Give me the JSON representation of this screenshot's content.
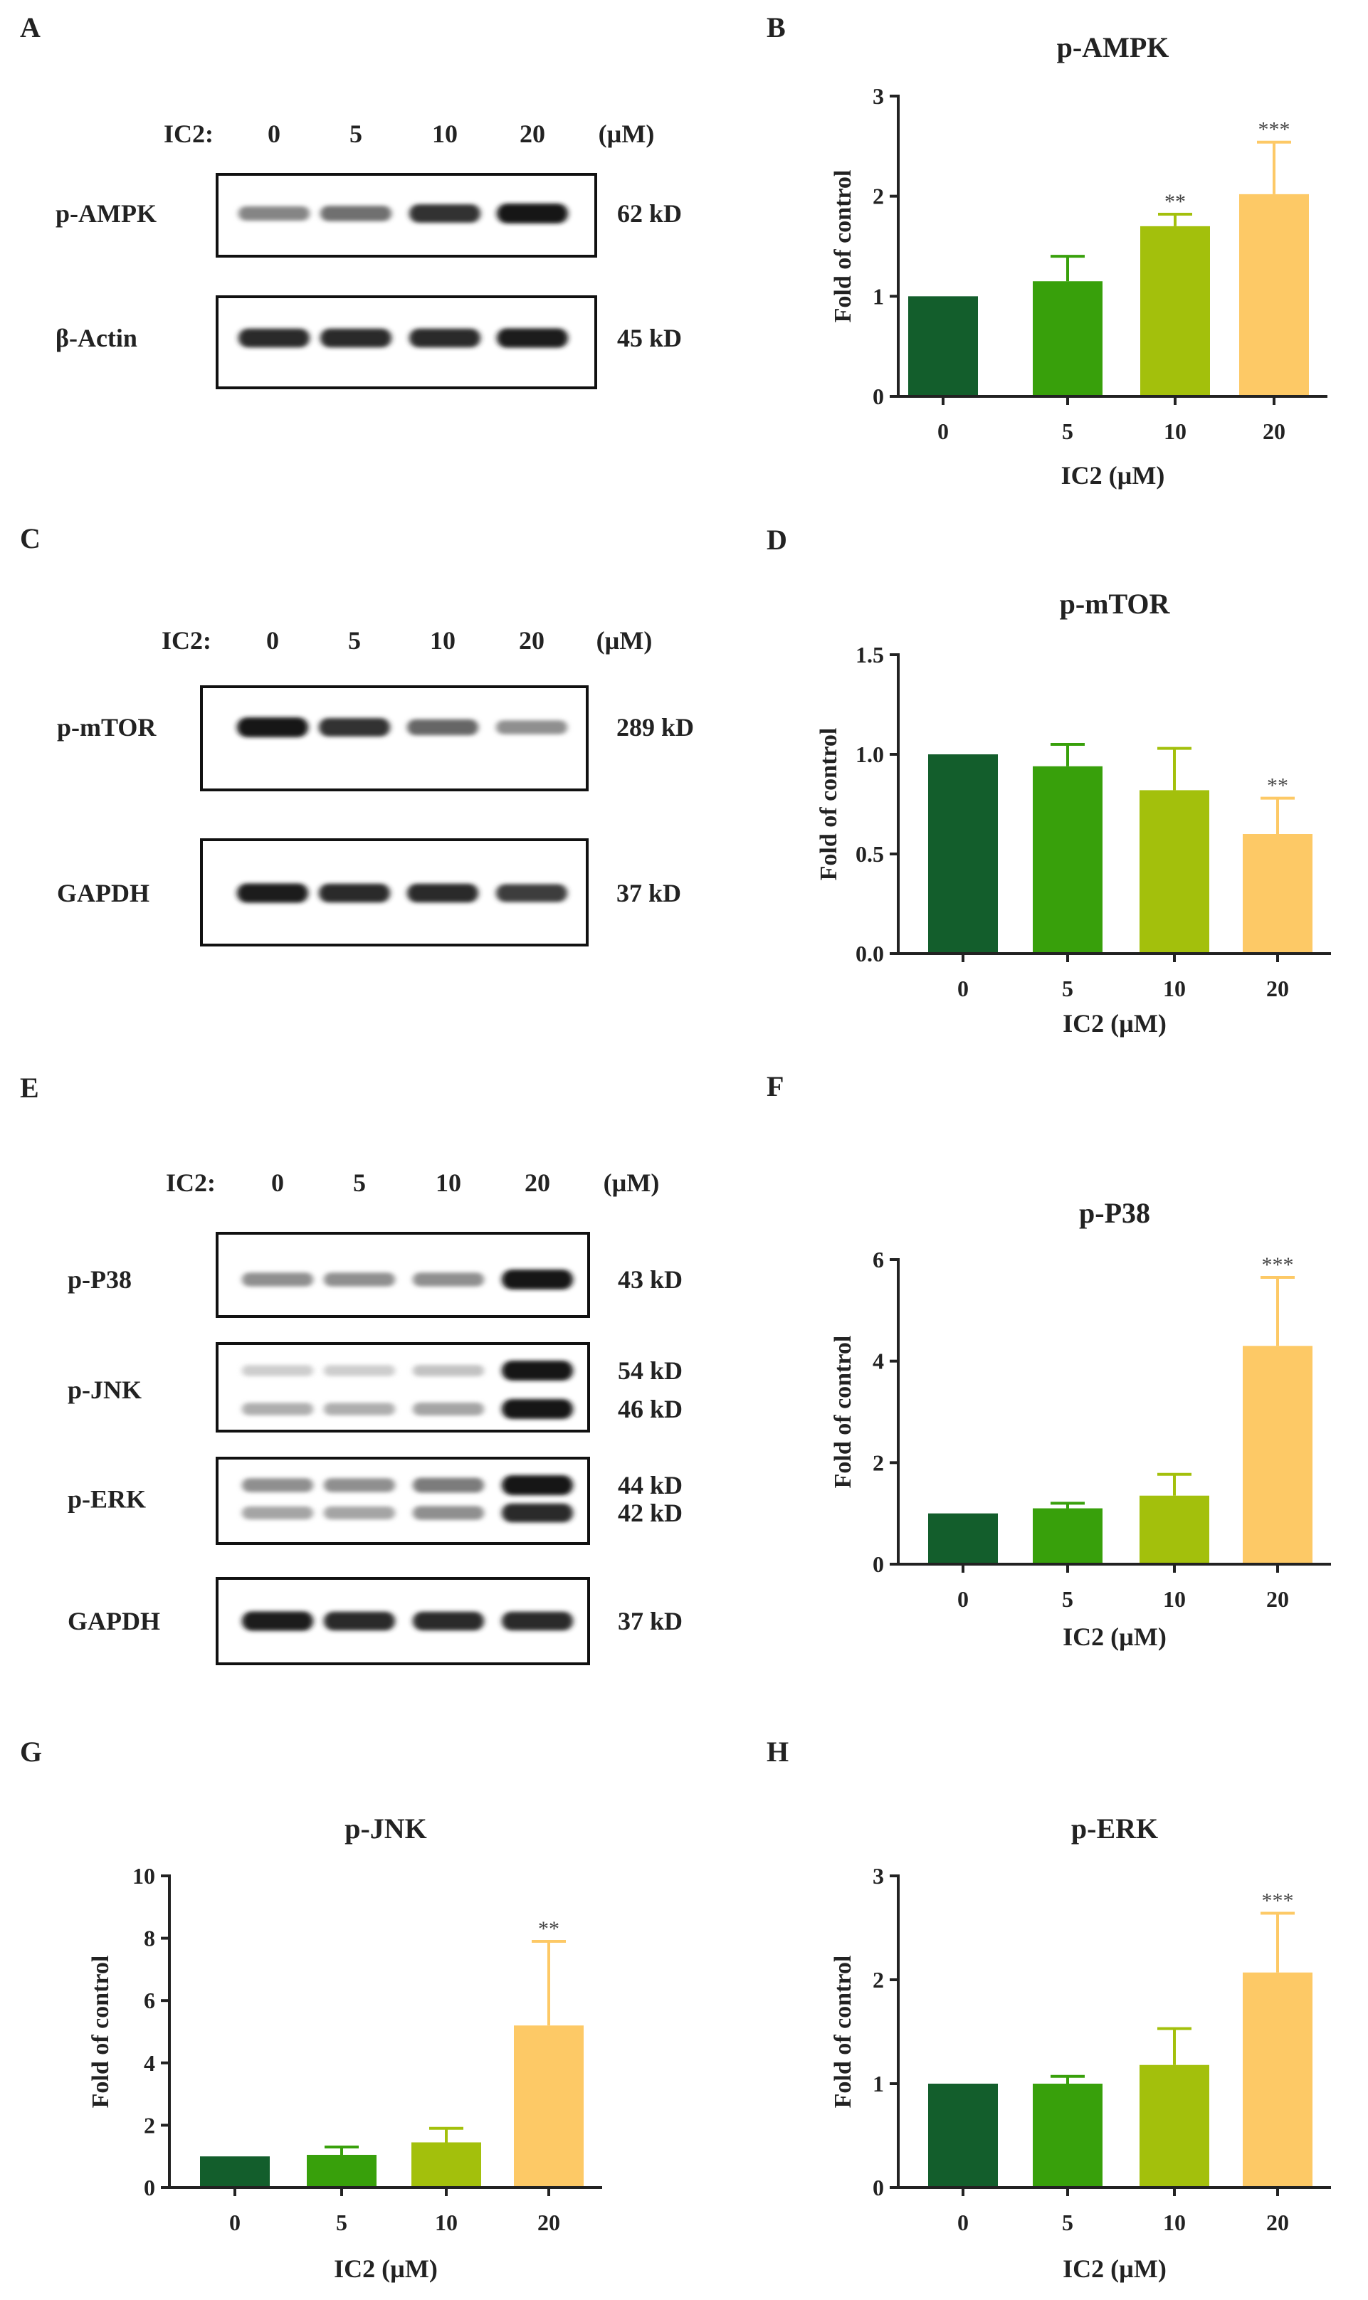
{
  "colors": {
    "c0": "#135e2c",
    "c5": "#38a00b",
    "c10": "#a3c00c",
    "c20": "#fdc966",
    "ink": "#222222"
  },
  "blots": [
    {
      "panel": "A",
      "doses": [
        "0",
        "5",
        "10",
        "20"
      ],
      "dose_prefix": "IC2:",
      "unit": "(µM)",
      "rows": [
        {
          "label": "p-AMPK",
          "kd": [
            "62 kD"
          ],
          "bands": [
            [
              0.45,
              0.55,
              0.85,
              1.0
            ]
          ]
        },
        {
          "label": "β-Actin",
          "kd": [
            "45 kD"
          ],
          "bands": [
            [
              0.9,
              0.9,
              0.9,
              0.95
            ]
          ]
        }
      ]
    },
    {
      "panel": "C",
      "doses": [
        "0",
        "5",
        "10",
        "20"
      ],
      "dose_prefix": "IC2:",
      "unit": "(µM)",
      "rows": [
        {
          "label": "p-mTOR",
          "kd": [
            "289 kD"
          ],
          "bands": [
            [
              1.0,
              0.85,
              0.6,
              0.4
            ]
          ]
        },
        {
          "label": "GAPDH",
          "kd": [
            "37 kD"
          ],
          "bands": [
            [
              0.95,
              0.9,
              0.9,
              0.8
            ]
          ]
        }
      ]
    },
    {
      "panel": "E",
      "doses": [
        "0",
        "5",
        "10",
        "20"
      ],
      "dose_prefix": "IC2:",
      "unit": "(µM)",
      "rows": [
        {
          "label": "p-P38",
          "kd": [
            "43 kD"
          ],
          "bands": [
            [
              0.4,
              0.4,
              0.4,
              1.0
            ]
          ]
        },
        {
          "label": "p-JNK",
          "kd": [
            "54 kD",
            "46 kD"
          ],
          "bands": [
            [
              0.1,
              0.1,
              0.15,
              1.0
            ],
            [
              0.25,
              0.25,
              0.3,
              1.0
            ]
          ]
        },
        {
          "label": "p-ERK",
          "kd": [
            "44 kD",
            "42 kD"
          ],
          "bands": [
            [
              0.4,
              0.4,
              0.5,
              1.0
            ],
            [
              0.3,
              0.3,
              0.4,
              0.9
            ]
          ]
        },
        {
          "label": "GAPDH",
          "kd": [
            "37 kD"
          ],
          "bands": [
            [
              0.95,
              0.9,
              0.9,
              0.9
            ]
          ]
        }
      ]
    }
  ],
  "chart_data": [
    {
      "panel": "B",
      "type": "bar",
      "title": "p-AMPK",
      "xlabel": "IC2 (µM)",
      "ylabel": "Fold of control",
      "categories": [
        "0",
        "5",
        "10",
        "20"
      ],
      "values": [
        1.0,
        1.15,
        1.7,
        2.02
      ],
      "errors": [
        0,
        0.25,
        0.12,
        0.52
      ],
      "significance": [
        "",
        "",
        "**",
        "***"
      ],
      "ylim": [
        0,
        3
      ],
      "yticks": [
        "0",
        "1",
        "2",
        "3"
      ],
      "grid": false
    },
    {
      "panel": "D",
      "type": "bar",
      "title": "p-mTOR",
      "xlabel": "IC2 (µM)",
      "ylabel": "Fold of control",
      "categories": [
        "0",
        "5",
        "10",
        "20"
      ],
      "values": [
        1.0,
        0.94,
        0.82,
        0.6
      ],
      "errors": [
        0,
        0.11,
        0.21,
        0.18
      ],
      "significance": [
        "",
        "",
        "",
        "**"
      ],
      "ylim": [
        0,
        1.5
      ],
      "yticks": [
        "0.0",
        "0.5",
        "1.0",
        "1.5"
      ],
      "grid": false
    },
    {
      "panel": "F",
      "type": "bar",
      "title": "p-P38",
      "xlabel": "IC2 (µM)",
      "ylabel": "Fold of control",
      "categories": [
        "0",
        "5",
        "10",
        "20"
      ],
      "values": [
        1.0,
        1.1,
        1.35,
        4.3
      ],
      "errors": [
        0,
        0.1,
        0.42,
        1.35
      ],
      "significance": [
        "",
        "",
        "",
        "***"
      ],
      "ylim": [
        0,
        6
      ],
      "yticks": [
        "0",
        "2",
        "4",
        "6"
      ],
      "grid": false
    },
    {
      "panel": "G",
      "type": "bar",
      "title": "p-JNK",
      "xlabel": "IC2 (µM)",
      "ylabel": "Fold of control",
      "categories": [
        "0",
        "5",
        "10",
        "20"
      ],
      "values": [
        1.0,
        1.05,
        1.45,
        5.2
      ],
      "errors": [
        0,
        0.25,
        0.45,
        2.7
      ],
      "significance": [
        "",
        "",
        "",
        "**"
      ],
      "ylim": [
        0,
        10
      ],
      "yticks": [
        "0",
        "2",
        "4",
        "6",
        "8",
        "10"
      ],
      "grid": false
    },
    {
      "panel": "H",
      "type": "bar",
      "title": "p-ERK",
      "xlabel": "IC2 (µM)",
      "ylabel": "Fold of control",
      "categories": [
        "0",
        "5",
        "10",
        "20"
      ],
      "values": [
        1.0,
        1.0,
        1.18,
        2.07
      ],
      "errors": [
        0,
        0.07,
        0.35,
        0.57
      ],
      "significance": [
        "",
        "",
        "",
        "***"
      ],
      "ylim": [
        0,
        3
      ],
      "yticks": [
        "0",
        "1",
        "2",
        "3"
      ],
      "grid": false
    }
  ]
}
